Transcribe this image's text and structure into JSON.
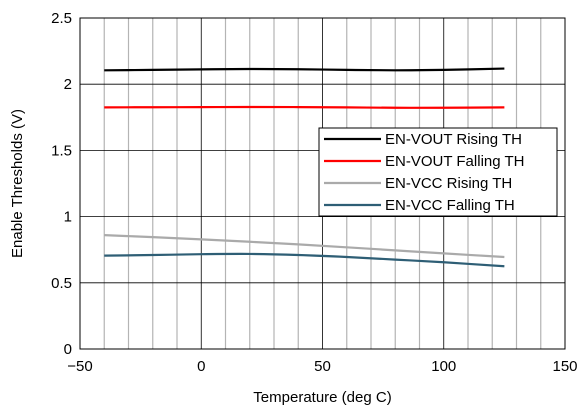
{
  "chart_data": {
    "type": "line",
    "title": "",
    "xlabel": "Temperature (deg C)",
    "ylabel": "Enable Thresholds (V)",
    "xlim": [
      -50,
      150
    ],
    "ylim": [
      0,
      2.5
    ],
    "xticks": [
      -50,
      0,
      50,
      100,
      150
    ],
    "xtick_labels": [
      "−50",
      "0",
      "50",
      "100",
      "150"
    ],
    "yticks": [
      0,
      0.5,
      1,
      1.5,
      2,
      2.5
    ],
    "ytick_labels": [
      "0",
      "0.5",
      "1",
      "1.5",
      "2",
      "2.5"
    ],
    "grid": {
      "x_minor_step": 10,
      "x_major_step": 50,
      "y_major_step": 0.5
    },
    "legend_position": "right",
    "series": [
      {
        "name": "EN-VOUT Rising TH",
        "color": "#000000",
        "x": [
          -40,
          -20,
          0,
          20,
          40,
          60,
          80,
          100,
          125
        ],
        "y": [
          2.105,
          2.108,
          2.112,
          2.115,
          2.113,
          2.108,
          2.105,
          2.108,
          2.118
        ]
      },
      {
        "name": "EN-VOUT Falling TH",
        "color": "#ff0000",
        "x": [
          -40,
          -20,
          0,
          20,
          40,
          60,
          80,
          100,
          125
        ],
        "y": [
          1.825,
          1.826,
          1.827,
          1.828,
          1.827,
          1.825,
          1.822,
          1.822,
          1.825
        ]
      },
      {
        "name": "EN-VCC Rising TH",
        "color": "#aaaaaa",
        "x": [
          -40,
          -20,
          0,
          20,
          40,
          60,
          80,
          100,
          125
        ],
        "y": [
          0.86,
          0.845,
          0.828,
          0.81,
          0.79,
          0.768,
          0.745,
          0.722,
          0.695
        ]
      },
      {
        "name": "EN-VCC Falling TH",
        "color": "#2e5e75",
        "x": [
          -40,
          -20,
          0,
          20,
          40,
          60,
          80,
          100,
          125
        ],
        "y": [
          0.705,
          0.71,
          0.716,
          0.718,
          0.71,
          0.695,
          0.675,
          0.655,
          0.625
        ]
      }
    ]
  }
}
